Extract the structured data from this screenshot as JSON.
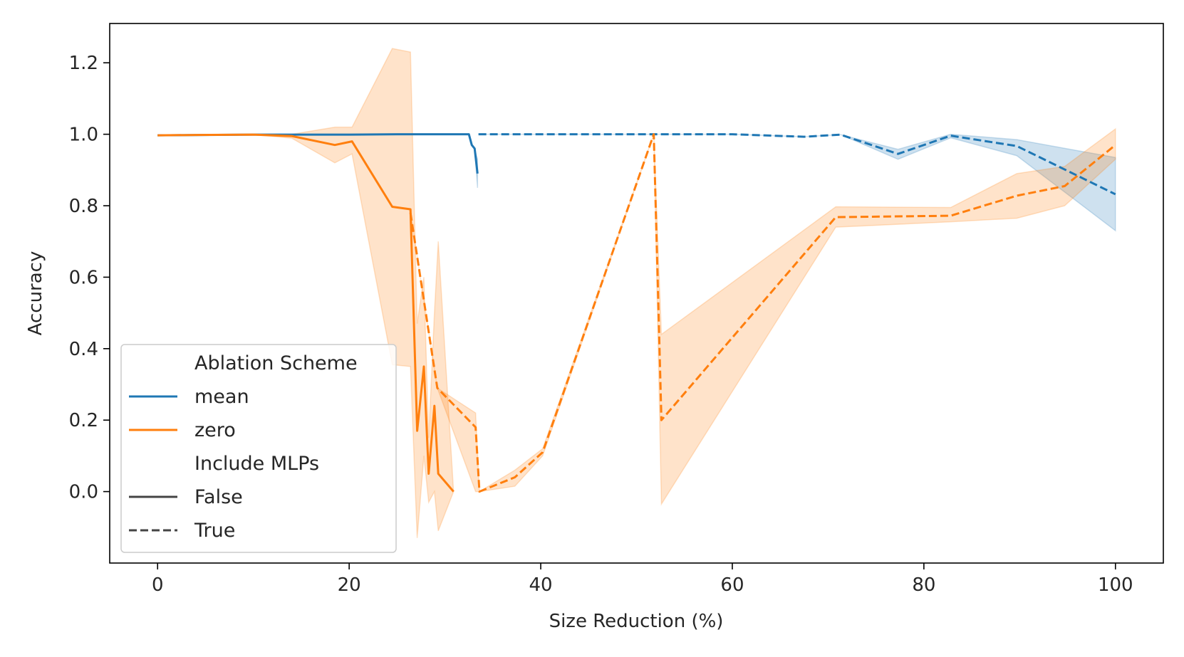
{
  "chart_data": {
    "type": "line",
    "title": "",
    "xlabel": "Size Reduction (%)",
    "ylabel": "Accuracy",
    "xlim": [
      -5,
      105
    ],
    "ylim": [
      -0.2,
      1.31
    ],
    "x_ticks": [
      0,
      20,
      40,
      60,
      80,
      100
    ],
    "x_tick_labels": [
      "0",
      "20",
      "40",
      "60",
      "80",
      "100"
    ],
    "y_ticks": [
      0.0,
      0.2,
      0.4,
      0.6,
      0.8,
      1.0,
      1.2
    ],
    "y_tick_labels": [
      "0.0",
      "0.2",
      "0.4",
      "0.6",
      "0.8",
      "1.0",
      "1.2"
    ],
    "colors": {
      "mean": "#1f77b4",
      "zero": "#ff7f0e",
      "style": "#444444"
    },
    "legend": {
      "placement": "lower-left",
      "hue_title": "Ablation Scheme",
      "hue_entries": [
        "mean",
        "zero"
      ],
      "style_title": "Include MLPs",
      "style_entries": [
        "False",
        "True"
      ]
    },
    "series": [
      {
        "name": "mean",
        "include_mlps": "False",
        "color": "mean",
        "dashed": false,
        "points": [
          [
            0,
            0.997,
            0.997,
            0.997
          ],
          [
            5,
            0.998,
            0.998,
            0.998
          ],
          [
            10,
            0.999,
            0.999,
            0.999
          ],
          [
            15,
            0.999,
            0.999,
            0.999
          ],
          [
            20,
            0.999,
            0.999,
            0.999
          ],
          [
            25,
            1.0,
            1.0,
            1.0
          ],
          [
            30,
            1.0,
            1.0,
            1.0
          ],
          [
            32.5,
            1.0,
            1.0,
            1.0
          ],
          [
            32.8,
            0.97,
            0.97,
            0.97
          ],
          [
            33.1,
            0.96,
            0.96,
            0.96
          ],
          [
            33.4,
            0.89,
            0.85,
            0.93
          ]
        ]
      },
      {
        "name": "mean",
        "include_mlps": "True",
        "color": "mean",
        "dashed": true,
        "points": [
          [
            33.5,
            1.0,
            1.0,
            1.0
          ],
          [
            40,
            1.0,
            1.0,
            1.0
          ],
          [
            50,
            1.0,
            1.0,
            1.0
          ],
          [
            60,
            1.0,
            1.0,
            1.0
          ],
          [
            67.5,
            0.993,
            0.993,
            0.993
          ],
          [
            71.3,
            0.999,
            0.999,
            0.999
          ],
          [
            77.3,
            0.945,
            0.93,
            0.958
          ],
          [
            82.8,
            0.996,
            0.99,
            1.0
          ],
          [
            89.7,
            0.967,
            0.94,
            0.985
          ],
          [
            100,
            0.832,
            0.73,
            0.935
          ]
        ]
      },
      {
        "name": "zero",
        "include_mlps": "False",
        "color": "zero",
        "dashed": false,
        "points": [
          [
            0,
            0.997,
            0.997,
            0.997
          ],
          [
            4,
            0.998,
            0.998,
            0.998
          ],
          [
            10,
            0.999,
            0.999,
            0.999
          ],
          [
            14,
            0.995,
            0.989,
            1.0
          ],
          [
            18.5,
            0.97,
            0.92,
            1.02
          ],
          [
            20.3,
            0.98,
            0.945,
            1.02
          ],
          [
            24.5,
            0.797,
            0.355,
            1.24
          ],
          [
            26.4,
            0.79,
            0.35,
            1.23
          ],
          [
            27.1,
            0.17,
            -0.13,
            0.47
          ],
          [
            27.8,
            0.35,
            0.1,
            0.6
          ],
          [
            28.3,
            0.05,
            -0.03,
            0.15
          ],
          [
            28.9,
            0.24,
            0.0,
            0.5
          ],
          [
            29.3,
            0.05,
            -0.11,
            0.7
          ],
          [
            30.9,
            0.0,
            0.0,
            0.0
          ]
        ]
      },
      {
        "name": "zero",
        "include_mlps": "True",
        "color": "zero",
        "dashed": true,
        "points": [
          [
            26.4,
            0.78,
            0.78,
            0.78
          ],
          [
            29.2,
            0.29,
            0.29,
            0.29
          ],
          [
            33.2,
            0.18,
            0.0,
            0.22
          ],
          [
            33.6,
            0.0,
            0.0,
            0.0
          ],
          [
            37.3,
            0.04,
            0.015,
            0.06
          ],
          [
            40.2,
            0.11,
            0.1,
            0.12
          ],
          [
            51.8,
            1.0,
            1.0,
            1.0
          ],
          [
            52.6,
            0.2,
            -0.035,
            0.44
          ],
          [
            70.8,
            0.768,
            0.74,
            0.797
          ],
          [
            82.8,
            0.772,
            0.755,
            0.795
          ],
          [
            89.7,
            0.828,
            0.765,
            0.89
          ],
          [
            94.7,
            0.855,
            0.8,
            0.91
          ],
          [
            100,
            0.97,
            0.93,
            1.015
          ]
        ]
      }
    ]
  }
}
